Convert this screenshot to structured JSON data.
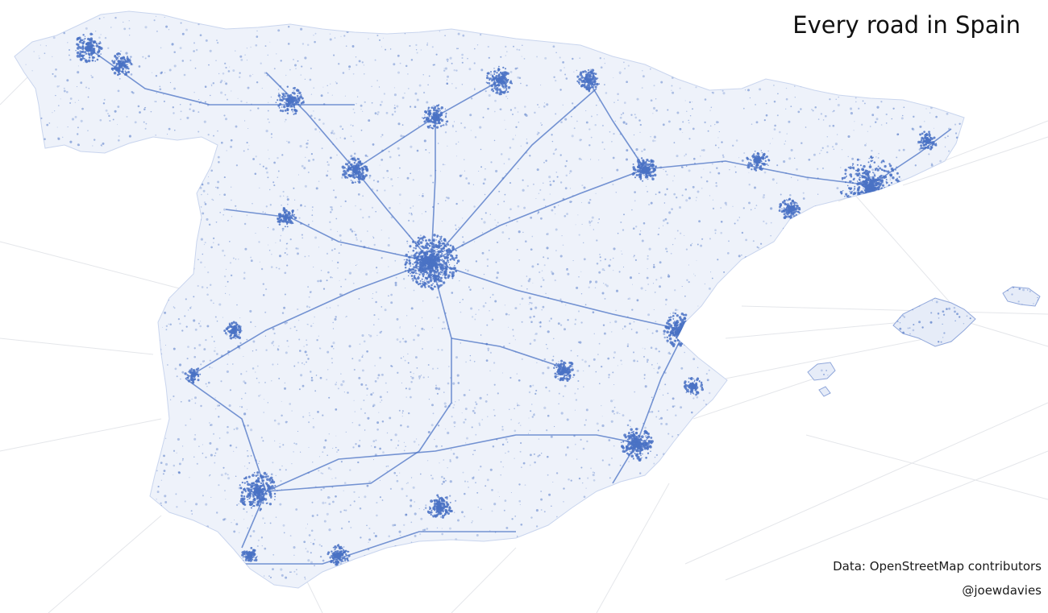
{
  "title": "Every road in Spain",
  "credits": {
    "data_source": "Data: OpenStreetMap contributors",
    "author": "@joewdavies"
  },
  "colors": {
    "background": "#ffffff",
    "road": "#4a72c4",
    "land_fill": "#e6ecf8",
    "faint_lines": "#e4e6ea",
    "text": "#111111"
  },
  "map": {
    "regions": [
      "Iberian Peninsula (Spain)",
      "Mallorca",
      "Menorca",
      "Ibiza",
      "Formentera"
    ]
  }
}
